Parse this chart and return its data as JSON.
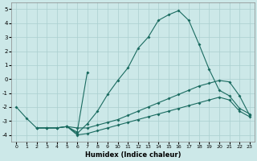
{
  "xlabel": "Humidex (Indice chaleur)",
  "bg_color": "#cce8e8",
  "grid_color": "#aacfcf",
  "line_color": "#1a6b60",
  "xlim": [
    -0.5,
    23.5
  ],
  "ylim": [
    -4.5,
    5.5
  ],
  "xticks": [
    0,
    1,
    2,
    3,
    4,
    5,
    6,
    7,
    8,
    9,
    10,
    11,
    12,
    13,
    14,
    15,
    16,
    17,
    18,
    19,
    20,
    21,
    22,
    23
  ],
  "yticks": [
    -4,
    -3,
    -2,
    -1,
    0,
    1,
    2,
    3,
    4,
    5
  ],
  "series": [
    {
      "x": [
        0,
        1,
        2,
        3,
        4,
        5,
        6,
        7,
        8,
        9,
        10,
        11,
        12,
        13,
        14,
        15,
        16,
        17,
        18,
        19,
        20,
        21,
        22,
        23
      ],
      "y": [
        -2.0,
        -2.8,
        -3.5,
        -3.5,
        -3.5,
        -3.4,
        -3.9,
        -3.2,
        -2.3,
        -1.1,
        -0.1,
        0.8,
        2.2,
        3.0,
        4.2,
        4.6,
        4.9,
        4.2,
        2.5,
        0.7,
        -0.8,
        -1.2,
        -2.1,
        -2.5
      ]
    },
    {
      "x": [
        2,
        3,
        4,
        5,
        6,
        7,
        8,
        9,
        10,
        11,
        12,
        13,
        14,
        15,
        16,
        17,
        18,
        19,
        20,
        21,
        22,
        23
      ],
      "y": [
        -3.5,
        -3.5,
        -3.5,
        -3.4,
        -3.5,
        -3.5,
        -3.3,
        -3.1,
        -2.9,
        -2.6,
        -2.3,
        -2.0,
        -1.7,
        -1.4,
        -1.1,
        -0.8,
        -0.5,
        -0.3,
        -0.1,
        -0.2,
        -1.2,
        -2.6
      ]
    },
    {
      "x": [
        2,
        3,
        4,
        5,
        6,
        7,
        8,
        9,
        10,
        11,
        12,
        13,
        14,
        15,
        16,
        17,
        18,
        19,
        20,
        21,
        22,
        23
      ],
      "y": [
        -3.5,
        -3.5,
        -3.5,
        -3.4,
        -4.0,
        -3.9,
        -3.7,
        -3.5,
        -3.3,
        -3.1,
        -2.9,
        -2.7,
        -2.5,
        -2.3,
        -2.1,
        -1.9,
        -1.7,
        -1.5,
        -1.3,
        -1.5,
        -2.3,
        -2.7
      ]
    },
    {
      "x": [
        5,
        6,
        7
      ],
      "y": [
        -3.4,
        -3.8,
        0.5
      ]
    }
  ]
}
